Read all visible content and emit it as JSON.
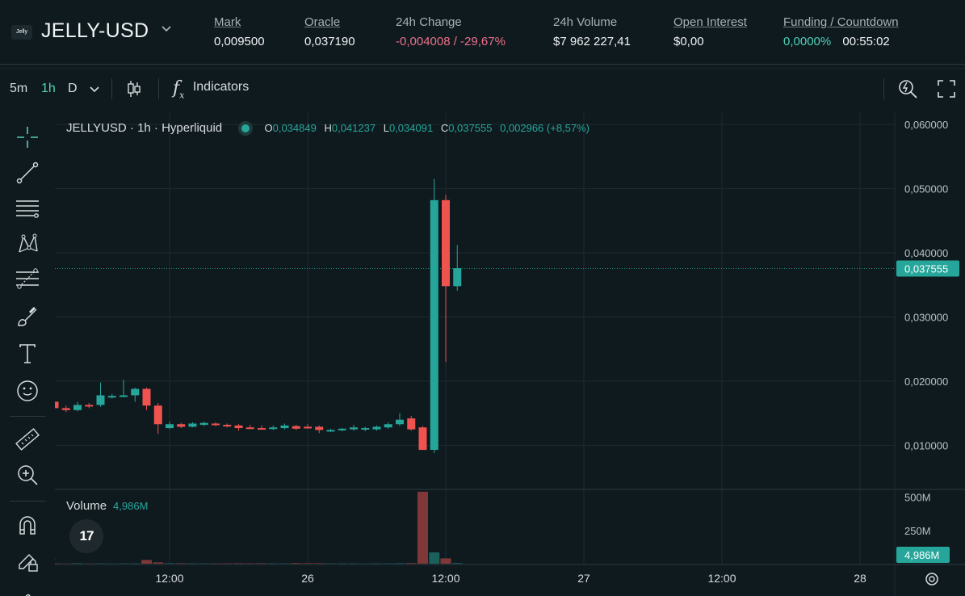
{
  "header": {
    "logo_text": "Jelly",
    "pair": "JELLY-USD",
    "stats": {
      "mark": {
        "label": "Mark",
        "value": "0,009500"
      },
      "oracle": {
        "label": "Oracle",
        "value": "0,037190"
      },
      "change": {
        "label": "24h Change",
        "value": "-0,004008 / -29,67%"
      },
      "volume": {
        "label": "24h Volume",
        "value": "$7 962 227,41"
      },
      "open_interest": {
        "label": "Open Interest",
        "value": "$0,00"
      },
      "funding": {
        "label": "Funding / Countdown",
        "rate": "0,0000%",
        "countdown": "00:55:02"
      }
    }
  },
  "toolbar": {
    "intervals": [
      "5m",
      "1h",
      "D"
    ],
    "active_interval": "1h",
    "indicators_label": "Indicators"
  },
  "draw_tools": [
    "crosshair-icon",
    "trend-line-icon",
    "horizontal-lines-icon",
    "pattern-icon",
    "fib-levels-icon",
    "brush-icon",
    "text-tool-icon",
    "emoji-icon",
    "ruler-icon",
    "zoom-in-icon",
    "magnet-icon",
    "lock-draw-icon"
  ],
  "legend": {
    "title": "JELLYUSD · 1h · Hyperliquid",
    "o_label": "O",
    "o": "0,034849",
    "h_label": "H",
    "h": "0,041237",
    "l_label": "L",
    "l": "0,034091",
    "c_label": "C",
    "c": "0,037555",
    "change": "0,002966 (+8,57%)"
  },
  "volume_legend": {
    "label": "Volume",
    "value": "4,986M"
  },
  "tv_logo": "17",
  "colors": {
    "up": "#26a69a",
    "down": "#ef5350",
    "background": "#0f1a1f",
    "grid": "#1c2a2f"
  },
  "chart_data": {
    "type": "candlestick",
    "symbol": "JELLYUSD",
    "interval": "1h",
    "price_axis": {
      "ticks": [
        "0,060000",
        "0,050000",
        "0,040000",
        "0,030000",
        "0,020000",
        "0,010000"
      ],
      "tick_values": [
        0.06,
        0.05,
        0.04,
        0.03,
        0.02,
        0.01
      ],
      "last_price_label": "0,037555",
      "last_price": 0.037555
    },
    "volume_axis": {
      "ticks": [
        "500M",
        "250M"
      ],
      "tick_values": [
        500,
        250
      ],
      "last_label": "4,986M"
    },
    "time_axis": {
      "labels": [
        "12:00",
        "26",
        "12:00",
        "27",
        "12:00",
        "28"
      ],
      "label_positions_hours": [
        12,
        24,
        36,
        48,
        60,
        72
      ]
    },
    "first_candle_hour": 1,
    "candles": [
      {
        "o": 0.0168,
        "h": 0.0171,
        "l": 0.0163,
        "c": 0.0168
      },
      {
        "o": 0.0168,
        "h": 0.0172,
        "l": 0.0145,
        "c": 0.0158
      },
      {
        "o": 0.0158,
        "h": 0.0162,
        "l": 0.0152,
        "c": 0.0155
      },
      {
        "o": 0.0155,
        "h": 0.0168,
        "l": 0.0153,
        "c": 0.0163
      },
      {
        "o": 0.0163,
        "h": 0.0166,
        "l": 0.0158,
        "c": 0.0162
      },
      {
        "o": 0.0163,
        "h": 0.0198,
        "l": 0.016,
        "c": 0.0178
      },
      {
        "o": 0.0177,
        "h": 0.018,
        "l": 0.0173,
        "c": 0.0177
      },
      {
        "o": 0.0177,
        "h": 0.0202,
        "l": 0.0175,
        "c": 0.0178
      },
      {
        "o": 0.0178,
        "h": 0.019,
        "l": 0.0168,
        "c": 0.0188
      },
      {
        "o": 0.0188,
        "h": 0.019,
        "l": 0.0155,
        "c": 0.0162
      },
      {
        "o": 0.0162,
        "h": 0.0166,
        "l": 0.0118,
        "c": 0.0133
      },
      {
        "o": 0.0127,
        "h": 0.0137,
        "l": 0.0125,
        "c": 0.0133
      },
      {
        "o": 0.0133,
        "h": 0.0135,
        "l": 0.0127,
        "c": 0.0129
      },
      {
        "o": 0.0129,
        "h": 0.0136,
        "l": 0.0128,
        "c": 0.0134
      },
      {
        "o": 0.0132,
        "h": 0.0137,
        "l": 0.013,
        "c": 0.0135
      },
      {
        "o": 0.0134,
        "h": 0.0136,
        "l": 0.013,
        "c": 0.0132
      },
      {
        "o": 0.0132,
        "h": 0.0134,
        "l": 0.0128,
        "c": 0.013
      },
      {
        "o": 0.0131,
        "h": 0.0133,
        "l": 0.0123,
        "c": 0.0127
      },
      {
        "o": 0.0128,
        "h": 0.0132,
        "l": 0.0126,
        "c": 0.0127
      },
      {
        "o": 0.0127,
        "h": 0.0131,
        "l": 0.0125,
        "c": 0.0126
      },
      {
        "o": 0.0126,
        "h": 0.0131,
        "l": 0.0124,
        "c": 0.0128
      },
      {
        "o": 0.0127,
        "h": 0.0134,
        "l": 0.0125,
        "c": 0.0131
      },
      {
        "o": 0.013,
        "h": 0.0132,
        "l": 0.0124,
        "c": 0.0126
      },
      {
        "o": 0.0129,
        "h": 0.0133,
        "l": 0.0126,
        "c": 0.0128
      },
      {
        "o": 0.0129,
        "h": 0.0131,
        "l": 0.0119,
        "c": 0.0124
      },
      {
        "o": 0.0123,
        "h": 0.0126,
        "l": 0.0121,
        "c": 0.0124
      },
      {
        "o": 0.0124,
        "h": 0.0127,
        "l": 0.0122,
        "c": 0.0126
      },
      {
        "o": 0.0125,
        "h": 0.0132,
        "l": 0.0123,
        "c": 0.0128
      },
      {
        "o": 0.0125,
        "h": 0.0129,
        "l": 0.0122,
        "c": 0.0127
      },
      {
        "o": 0.0125,
        "h": 0.0131,
        "l": 0.0123,
        "c": 0.0129
      },
      {
        "o": 0.0128,
        "h": 0.0136,
        "l": 0.0126,
        "c": 0.0133
      },
      {
        "o": 0.0133,
        "h": 0.015,
        "l": 0.013,
        "c": 0.014
      },
      {
        "o": 0.0142,
        "h": 0.0146,
        "l": 0.0123,
        "c": 0.0125
      },
      {
        "o": 0.0128,
        "h": 0.013,
        "l": 0.0093,
        "c": 0.0093
      },
      {
        "o": 0.0093,
        "h": 0.0515,
        "l": 0.0088,
        "c": 0.0482
      },
      {
        "o": 0.0482,
        "h": 0.049,
        "l": 0.023,
        "c": 0.0348
      },
      {
        "o": 0.0348,
        "h": 0.0412,
        "l": 0.0341,
        "c": 0.0376
      }
    ],
    "volumes_millions": [
      3,
      3,
      2,
      4,
      2,
      3,
      2,
      3,
      3,
      28,
      10,
      4,
      4,
      3,
      3,
      3,
      3,
      4,
      3,
      4,
      3,
      3,
      5,
      4,
      4,
      3,
      3,
      3,
      2,
      3,
      3,
      4,
      5,
      540,
      85,
      40,
      5
    ]
  }
}
